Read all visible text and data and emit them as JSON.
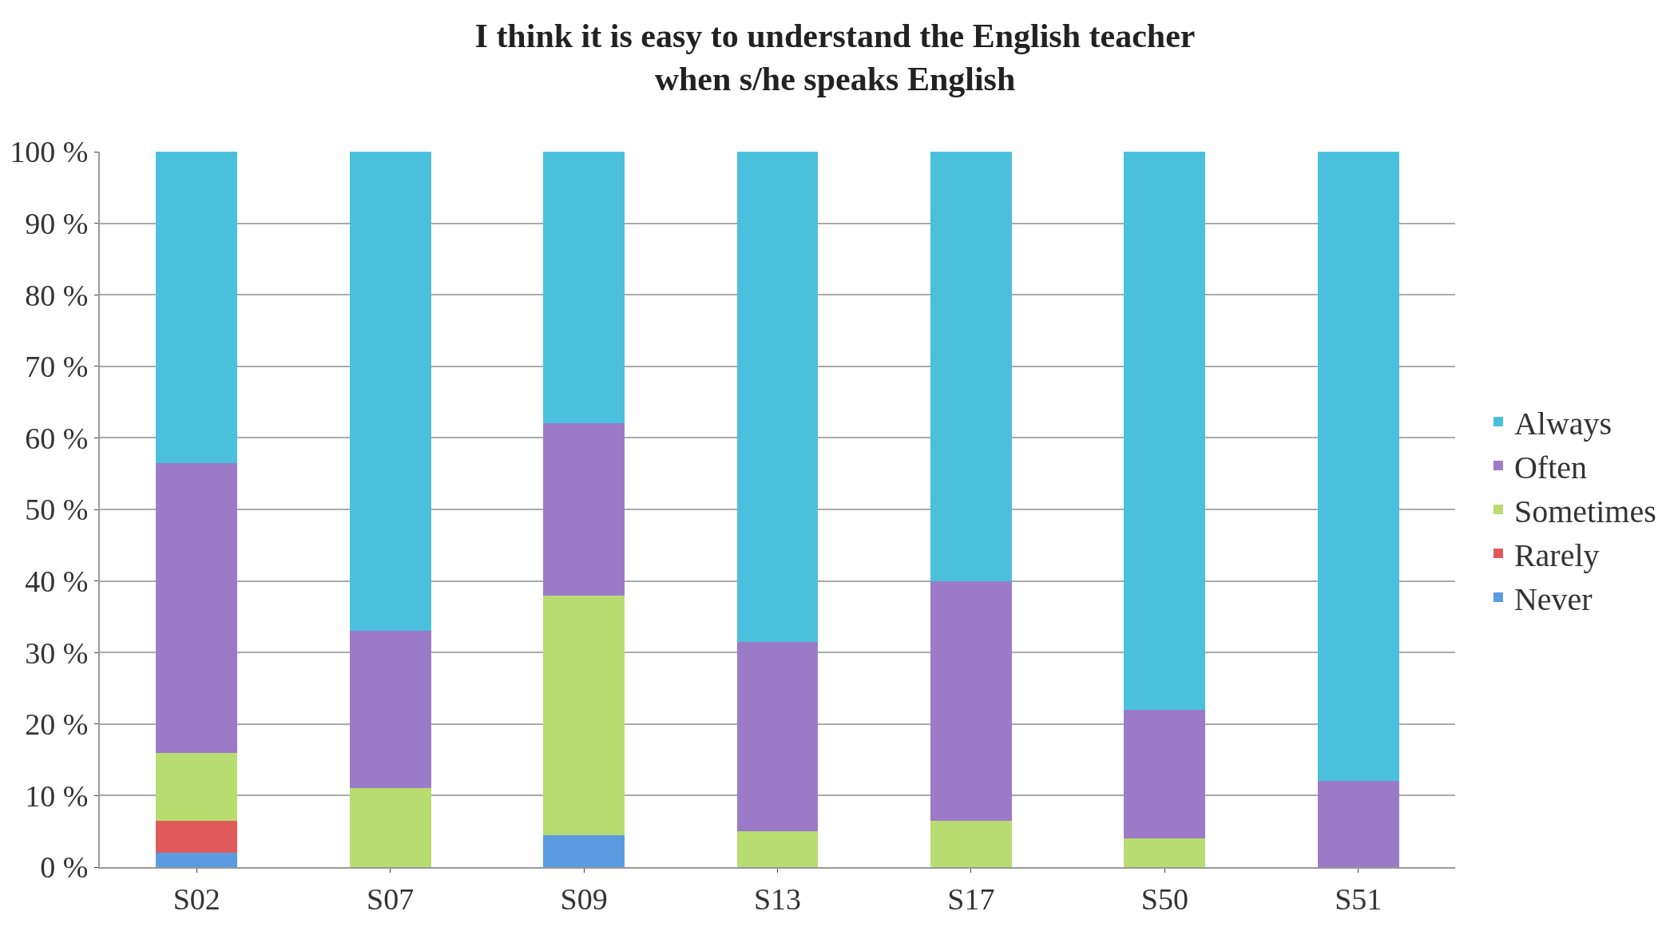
{
  "chart_data": {
    "type": "bar",
    "title": "I think it is easy to understand the English teacher\nwhen s/he speaks English",
    "categories": [
      "S02",
      "S07",
      "S09",
      "S13",
      "S17",
      "S50",
      "S51"
    ],
    "stacked": true,
    "series": [
      {
        "name": "Never",
        "color": "#5a9be0",
        "values": [
          2,
          0,
          4.5,
          0,
          0,
          0,
          0
        ]
      },
      {
        "name": "Rarely",
        "color": "#e05a5a",
        "values": [
          4.5,
          0,
          0,
          0,
          0,
          0,
          0
        ]
      },
      {
        "name": "Sometimes",
        "color": "#b8dc70",
        "values": [
          9.5,
          11,
          33.5,
          5,
          6.5,
          4,
          0
        ]
      },
      {
        "name": "Often",
        "color": "#9b7bc8",
        "values": [
          40.5,
          22,
          24,
          26.5,
          33.5,
          18,
          12
        ]
      },
      {
        "name": "Always",
        "color": "#4bc0dc",
        "values": [
          43.5,
          67,
          38,
          68.5,
          60,
          78,
          88
        ]
      }
    ],
    "ylim": [
      0,
      100
    ],
    "yticks": [
      {
        "value": 0,
        "label": "0 %"
      },
      {
        "value": 10,
        "label": "10 %"
      },
      {
        "value": 20,
        "label": "20 %"
      },
      {
        "value": 30,
        "label": "30 %"
      },
      {
        "value": 40,
        "label": "40 %"
      },
      {
        "value": 50,
        "label": "50 %"
      },
      {
        "value": 60,
        "label": "60 %"
      },
      {
        "value": 70,
        "label": "70 %"
      },
      {
        "value": 80,
        "label": "80 %"
      },
      {
        "value": 90,
        "label": "90 %"
      },
      {
        "value": 100,
        "label": "100 %"
      }
    ],
    "grid": "y",
    "legend": "right"
  }
}
